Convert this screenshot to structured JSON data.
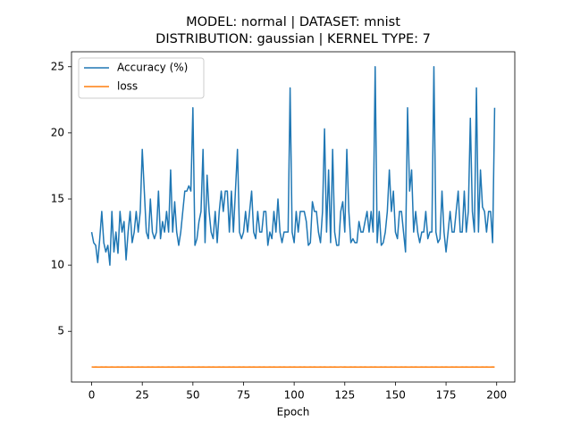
{
  "chart_data": {
    "type": "line",
    "title": "MODEL: normal | DATASET: mnist",
    "subtitle": "DISTRIBUTION: gaussian | KERNEL TYPE: 7",
    "x_label": "Epoch",
    "x": [
      0,
      1,
      2,
      3,
      4,
      5,
      6,
      7,
      8,
      9,
      10,
      11,
      12,
      13,
      14,
      15,
      16,
      17,
      18,
      19,
      20,
      21,
      22,
      23,
      24,
      25,
      26,
      27,
      28,
      29,
      30,
      31,
      32,
      33,
      34,
      35,
      36,
      37,
      38,
      39,
      40,
      41,
      42,
      43,
      44,
      45,
      46,
      47,
      48,
      49,
      50,
      51,
      52,
      53,
      54,
      55,
      56,
      57,
      58,
      59,
      60,
      61,
      62,
      63,
      64,
      65,
      66,
      67,
      68,
      69,
      70,
      71,
      72,
      73,
      74,
      75,
      76,
      77,
      78,
      79,
      80,
      81,
      82,
      83,
      84,
      85,
      86,
      87,
      88,
      89,
      90,
      91,
      92,
      93,
      94,
      95,
      96,
      97,
      98,
      99,
      100,
      101,
      102,
      103,
      104,
      105,
      106,
      107,
      108,
      109,
      110,
      111,
      112,
      113,
      114,
      115,
      116,
      117,
      118,
      119,
      120,
      121,
      122,
      123,
      124,
      125,
      126,
      127,
      128,
      129,
      130,
      131,
      132,
      133,
      134,
      135,
      136,
      137,
      138,
      139,
      140,
      141,
      142,
      143,
      144,
      145,
      146,
      147,
      148,
      149,
      150,
      151,
      152,
      153,
      154,
      155,
      156,
      157,
      158,
      159,
      160,
      161,
      162,
      163,
      164,
      165,
      166,
      167,
      168,
      169,
      170,
      171,
      172,
      173,
      174,
      175,
      176,
      177,
      178,
      179,
      180,
      181,
      182,
      183,
      184,
      185,
      186,
      187,
      188,
      189,
      190,
      191,
      192,
      193,
      194,
      195,
      196,
      197,
      198,
      199
    ],
    "series": [
      {
        "name": "Accuracy (%)",
        "color": "#1f77b4",
        "values": [
          12.5,
          11.7,
          11.5,
          10.2,
          12.0,
          14.06,
          11.7,
          11.0,
          11.5,
          10.0,
          14.06,
          11.0,
          12.5,
          10.9,
          14.06,
          12.5,
          13.3,
          10.4,
          12.5,
          14.06,
          11.7,
          12.5,
          14.06,
          12.5,
          14.06,
          18.75,
          15.6,
          12.5,
          12.0,
          15.0,
          12.5,
          12.0,
          12.5,
          15.6,
          12.0,
          13.3,
          12.5,
          14.06,
          12.5,
          17.2,
          12.5,
          14.8,
          12.5,
          11.5,
          12.5,
          14.06,
          15.6,
          15.6,
          16.0,
          15.6,
          21.9,
          11.5,
          12.0,
          13.3,
          14.06,
          18.75,
          11.7,
          16.8,
          14.06,
          12.5,
          12.0,
          14.06,
          11.7,
          14.06,
          15.6,
          14.06,
          15.6,
          15.6,
          12.5,
          15.6,
          12.5,
          15.6,
          18.75,
          12.5,
          12.0,
          12.5,
          14.06,
          12.5,
          14.06,
          15.6,
          12.5,
          12.0,
          14.06,
          12.5,
          12.5,
          14.06,
          14.06,
          11.5,
          12.5,
          12.0,
          14.06,
          12.5,
          15.0,
          12.5,
          11.7,
          12.5,
          12.5,
          12.5,
          23.4,
          12.5,
          11.7,
          14.06,
          12.5,
          14.06,
          14.06,
          14.06,
          13.3,
          11.5,
          11.7,
          14.8,
          14.06,
          14.06,
          12.5,
          11.7,
          14.06,
          20.3,
          12.5,
          17.2,
          11.7,
          18.75,
          12.5,
          11.5,
          11.5,
          14.06,
          14.8,
          12.5,
          18.75,
          14.06,
          11.7,
          12.0,
          11.7,
          11.7,
          13.3,
          12.5,
          12.5,
          13.3,
          14.06,
          12.5,
          14.06,
          12.5,
          25.0,
          11.7,
          14.06,
          11.5,
          11.7,
          12.5,
          14.06,
          17.2,
          14.06,
          15.6,
          12.5,
          12.0,
          14.06,
          14.06,
          12.5,
          11.0,
          21.9,
          15.6,
          17.2,
          12.5,
          14.06,
          12.5,
          11.7,
          12.5,
          12.5,
          14.06,
          12.0,
          12.5,
          12.5,
          25.0,
          12.5,
          11.7,
          12.0,
          15.6,
          12.5,
          11.0,
          12.5,
          14.06,
          12.5,
          12.5,
          14.06,
          15.6,
          12.5,
          12.5,
          15.6,
          12.5,
          14.06,
          21.1,
          14.06,
          12.5,
          23.4,
          12.5,
          17.2,
          14.4,
          14.06,
          12.5,
          14.06,
          14.06,
          11.7,
          21.9
        ]
      },
      {
        "name": "loss",
        "color": "#ff7f0e",
        "values": [
          2.31,
          2.3,
          2.31,
          2.3,
          2.3,
          2.31,
          2.3,
          2.31,
          2.3,
          2.3,
          2.31,
          2.3,
          2.3,
          2.31,
          2.3,
          2.31,
          2.3,
          2.3,
          2.31,
          2.3,
          2.31,
          2.3,
          2.3,
          2.31,
          2.3,
          2.31,
          2.3,
          2.3,
          2.31,
          2.3,
          2.31,
          2.3,
          2.3,
          2.31,
          2.3,
          2.31,
          2.3,
          2.3,
          2.31,
          2.3,
          2.31,
          2.3,
          2.3,
          2.31,
          2.3,
          2.31,
          2.3,
          2.3,
          2.31,
          2.3,
          2.31,
          2.3,
          2.3,
          2.31,
          2.3,
          2.31,
          2.3,
          2.3,
          2.31,
          2.3,
          2.31,
          2.3,
          2.3,
          2.31,
          2.3,
          2.31,
          2.3,
          2.3,
          2.31,
          2.3,
          2.31,
          2.3,
          2.3,
          2.31,
          2.3,
          2.31,
          2.3,
          2.3,
          2.31,
          2.3,
          2.31,
          2.3,
          2.3,
          2.31,
          2.3,
          2.31,
          2.3,
          2.3,
          2.31,
          2.3,
          2.31,
          2.3,
          2.3,
          2.31,
          2.3,
          2.31,
          2.3,
          2.3,
          2.31,
          2.3,
          2.31,
          2.3,
          2.3,
          2.31,
          2.3,
          2.31,
          2.3,
          2.3,
          2.31,
          2.3,
          2.31,
          2.3,
          2.3,
          2.31,
          2.3,
          2.31,
          2.3,
          2.3,
          2.31,
          2.3,
          2.31,
          2.3,
          2.3,
          2.31,
          2.3,
          2.31,
          2.3,
          2.3,
          2.31,
          2.3,
          2.31,
          2.3,
          2.3,
          2.31,
          2.3,
          2.31,
          2.3,
          2.3,
          2.31,
          2.3,
          2.31,
          2.3,
          2.3,
          2.31,
          2.3,
          2.31,
          2.3,
          2.3,
          2.31,
          2.3,
          2.31,
          2.3,
          2.3,
          2.31,
          2.3,
          2.31,
          2.3,
          2.3,
          2.31,
          2.3,
          2.31,
          2.3,
          2.3,
          2.31,
          2.3,
          2.31,
          2.3,
          2.3,
          2.31,
          2.3,
          2.31,
          2.3,
          2.3,
          2.31,
          2.3,
          2.31,
          2.3,
          2.3,
          2.31,
          2.3,
          2.31,
          2.3,
          2.3,
          2.31,
          2.3,
          2.31,
          2.3,
          2.3,
          2.31,
          2.3,
          2.31,
          2.3,
          2.3,
          2.31,
          2.3,
          2.31,
          2.3,
          2.3,
          2.31,
          2.3
        ]
      }
    ],
    "xlim": [
      -9.95,
      208.95
    ],
    "xticks": [
      0,
      25,
      50,
      75,
      100,
      125,
      150,
      175,
      200
    ],
    "ylim": [
      1.17,
      26.13
    ],
    "yticks": [
      5,
      10,
      15,
      20,
      25
    ],
    "legend": "upper left",
    "grid": false
  }
}
